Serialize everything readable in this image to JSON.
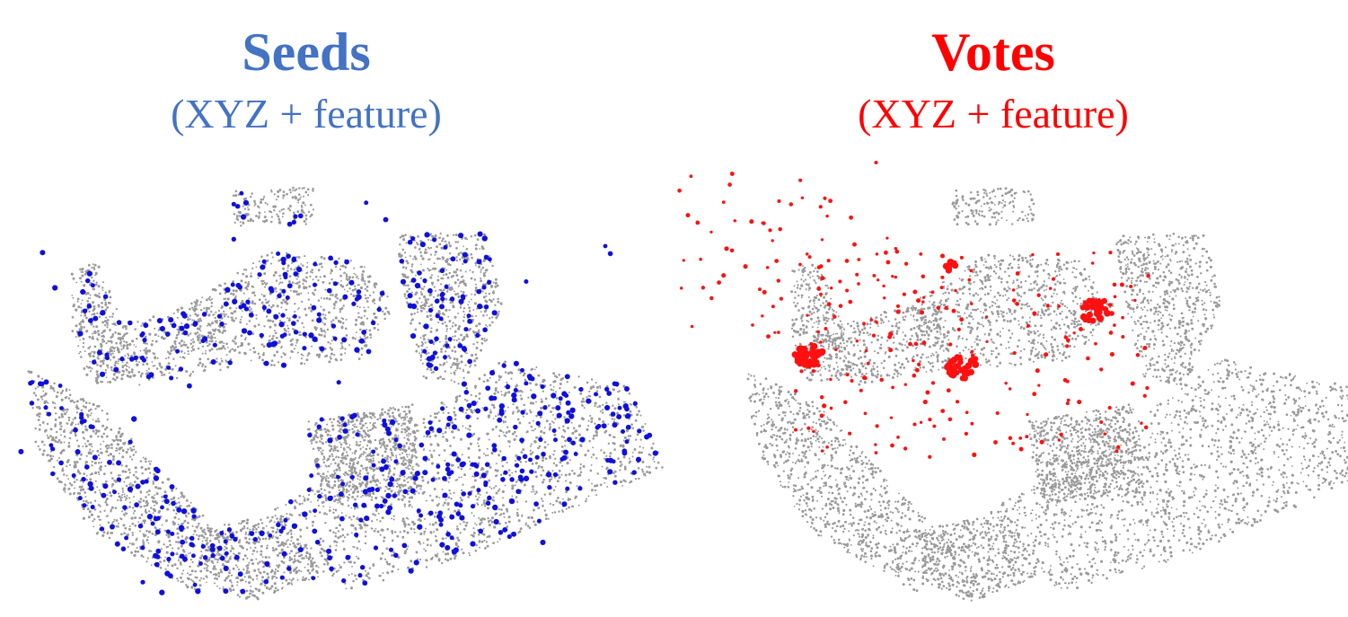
{
  "panels": [
    {
      "title": "Seeds",
      "subtitle": "(XYZ + feature)",
      "title_color": "#4472c4",
      "point_color": "#1010dd"
    },
    {
      "title": "Votes",
      "subtitle": "(XYZ + feature)",
      "title_color": "#ff0000",
      "point_color": "#ff1010"
    }
  ],
  "background_points_color": "#9a9a9a"
}
